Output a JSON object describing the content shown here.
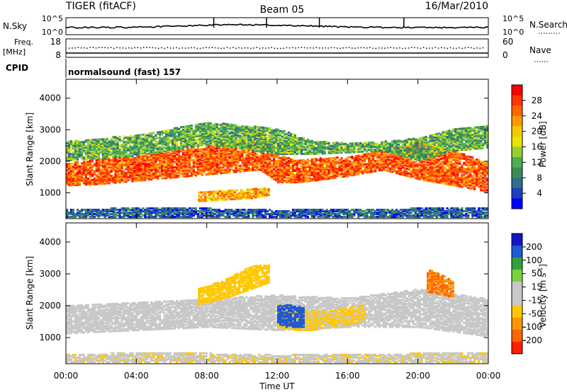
{
  "header": {
    "title": "TIGER (fitACF)",
    "beam": "Beam 05",
    "date": "16/Mar/2010"
  },
  "panels": {
    "nsky": {
      "left_label": "N.Sky",
      "right_label": "N.Search",
      "ticks_left": [
        "10^5",
        "10^0"
      ],
      "ticks_right": [
        "10^5",
        "10^0"
      ]
    },
    "freq": {
      "left_label": "Freq.",
      "left_unit": "[MHz]",
      "right_label": "Nave",
      "ticks_left": [
        "18",
        "8"
      ],
      "ticks_right": [
        "60",
        "0"
      ]
    },
    "cpid": {
      "label": "CPID",
      "value": "normalsound (fast) 157"
    }
  },
  "colorbars": {
    "power": {
      "label": "Power [dB]",
      "ticks": [
        "28",
        "24",
        "20",
        "16",
        "12",
        "8",
        "4"
      ],
      "colors": [
        "#ff0000",
        "#ff3300",
        "#ff6600",
        "#ff9900",
        "#f7c800",
        "#e9e500",
        "#9acd32",
        "#4caf50",
        "#3c8c5a",
        "#2e6e8e",
        "#1e3fc0",
        "#0000ff"
      ]
    },
    "velocity": {
      "label": "Velocity [m s",
      "superscript": "-1",
      "label_close": "]",
      "ticks": [
        "200",
        "100",
        "50",
        "15",
        "-15",
        "-50",
        "-100",
        "-200"
      ],
      "colors": [
        "#1414c8",
        "#1e5ad2",
        "#32a03c",
        "#78d23c",
        "#c8c8c8",
        "#c8c8c8",
        "#ffc800",
        "#ff9600",
        "#ff6400",
        "#ff1e00"
      ]
    }
  },
  "chart_data": [
    {
      "type": "heatmap",
      "title": "Power",
      "xlabel": "Time UT",
      "ylabel": "Slant Range [km]",
      "xtick_labels": [
        "00:00",
        "04:00",
        "08:00",
        "12:00",
        "16:00",
        "20:00",
        "00:00"
      ],
      "xlim": [
        0,
        24
      ],
      "ylim": [
        180,
        4600
      ],
      "yticks": [
        1000,
        2000,
        3000,
        4000
      ],
      "colorbar": {
        "label": "Power [dB]",
        "range": [
          0,
          32
        ]
      },
      "bands": [
        {
          "t": [
            0,
            2,
            4,
            6,
            8,
            10,
            11,
            12,
            13,
            14,
            16,
            18,
            20,
            22,
            24
          ],
          "r_lo": [
            1200,
            1250,
            1350,
            1450,
            1550,
            1650,
            1700,
            1300,
            1300,
            1350,
            1500,
            1700,
            1400,
            1200,
            1000
          ],
          "r_hi": [
            1900,
            2050,
            2150,
            2300,
            2450,
            2700,
            2850,
            2200,
            2000,
            2050,
            2100,
            2300,
            2600,
            2300,
            1900
          ],
          "power": 26
        },
        {
          "t": [
            0,
            4,
            8,
            12,
            14,
            16,
            18,
            20,
            22,
            24
          ],
          "r_lo": [
            2000,
            2150,
            2500,
            2200,
            2200,
            2250,
            2300,
            2000,
            2300,
            2400
          ],
          "r_hi": [
            2600,
            2800,
            3200,
            3000,
            2600,
            2550,
            2600,
            2700,
            3000,
            3100
          ],
          "power": 12
        },
        {
          "t": [
            7.5,
            9,
            10.5,
            11.5
          ],
          "r_lo": [
            700,
            750,
            800,
            900
          ],
          "r_hi": [
            1000,
            1050,
            1100,
            1100
          ],
          "power": 22
        },
        {
          "t": [
            0,
            6,
            12,
            18,
            24
          ],
          "r_lo": [
            200,
            200,
            200,
            200,
            200
          ],
          "r_hi": [
            450,
            500,
            420,
            460,
            500
          ],
          "power": 6
        }
      ]
    },
    {
      "type": "heatmap",
      "title": "Velocity",
      "xlabel": "Time UT",
      "ylabel": "Slant Range [km]",
      "xtick_labels": [
        "00:00",
        "04:00",
        "08:00",
        "12:00",
        "16:00",
        "20:00",
        "00:00"
      ],
      "xlim": [
        0,
        24
      ],
      "ylim": [
        180,
        4600
      ],
      "yticks": [
        1000,
        2000,
        3000,
        4000
      ],
      "colorbar": {
        "label": "Velocity [m s-1]",
        "range": [
          -250,
          250
        ]
      },
      "bands": [
        {
          "t": [
            0,
            4,
            8,
            12,
            16,
            20,
            24
          ],
          "r_lo": [
            1100,
            1200,
            1300,
            1200,
            1300,
            1300,
            1000
          ],
          "r_hi": [
            2000,
            2100,
            2200,
            2300,
            2200,
            2500,
            2200
          ],
          "velocity": 0
        },
        {
          "t": [
            12,
            13,
            14,
            15,
            16,
            17
          ],
          "r_lo": [
            1300,
            1200,
            1200,
            1300,
            1400,
            1500
          ],
          "r_hi": [
            2000,
            1900,
            1800,
            1800,
            1900,
            2000
          ],
          "velocity": -60
        },
        {
          "t": [
            12,
            12.5,
            13.5
          ],
          "r_lo": [
            1400,
            1300,
            1300
          ],
          "r_hi": [
            1950,
            2000,
            1900
          ],
          "velocity": 180
        },
        {
          "t": [
            7.5,
            9,
            10.5,
            11.5
          ],
          "r_lo": [
            2000,
            2200,
            2500,
            2700
          ],
          "r_hi": [
            2500,
            2800,
            3200,
            3300
          ],
          "velocity": -80
        },
        {
          "t": [
            20.5,
            21.5,
            22
          ],
          "r_lo": [
            2400,
            2300,
            2200
          ],
          "r_hi": [
            3100,
            2900,
            2700
          ],
          "velocity": -150
        },
        {
          "t": [
            0,
            6,
            12,
            18,
            24
          ],
          "r_lo": [
            200,
            200,
            200,
            200,
            200
          ],
          "r_hi": [
            450,
            500,
            420,
            460,
            500
          ],
          "velocity": -40
        }
      ]
    }
  ]
}
